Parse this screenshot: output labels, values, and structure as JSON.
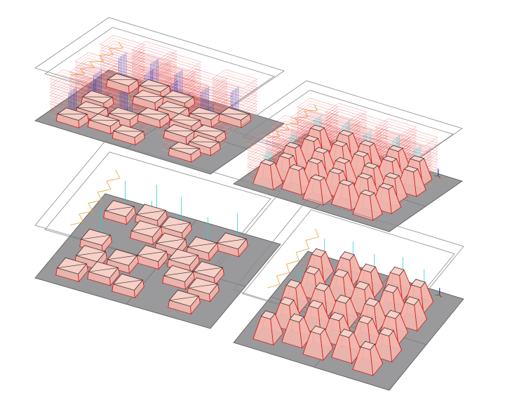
{
  "colors": {
    "background": "#ffffff",
    "plate": "#9a9a9c",
    "plate_edge": "#555555",
    "frame": "#8a8a8a",
    "boundary": "#e8a030",
    "part_fill": "#f2b7ae",
    "part_edge": "#d01818",
    "part_wire": "#303030",
    "toolpath_red": "#e86060",
    "toolpath_pink": "#f0a0a0",
    "toolpath_blue": "#3040c0",
    "toolpath_cyan": "#30d0d0"
  },
  "panels": [
    {
      "id": "top-left",
      "part_shape": "box",
      "toolpaths": "dense-blue-red"
    },
    {
      "id": "top-right",
      "part_shape": "frustum",
      "toolpaths": "dense-red-cyan"
    },
    {
      "id": "bottom-left",
      "part_shape": "box",
      "toolpaths": "none"
    },
    {
      "id": "bottom-right",
      "part_shape": "frustum",
      "toolpaths": "none"
    }
  ]
}
